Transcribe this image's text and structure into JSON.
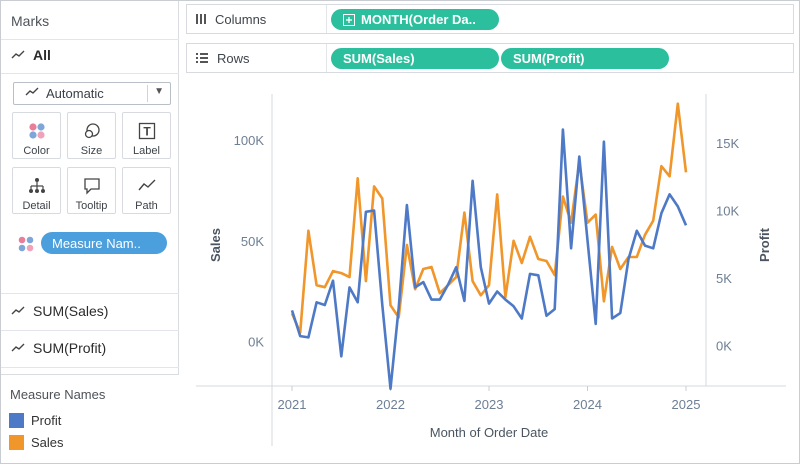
{
  "marks_panel": {
    "title": "Marks",
    "all_label": "All",
    "mark_type": "Automatic",
    "cards": [
      {
        "label": "Color",
        "icon": "color-dots-icon"
      },
      {
        "label": "Size",
        "icon": "size-circles-icon"
      },
      {
        "label": "Label",
        "icon": "label-t-icon"
      },
      {
        "label": "Detail",
        "icon": "detail-tree-icon"
      },
      {
        "label": "Tooltip",
        "icon": "tooltip-bubble-icon"
      },
      {
        "label": "Path",
        "icon": "path-line-icon"
      }
    ],
    "color_pill": "Measure Nam..",
    "measure_rows": [
      "SUM(Sales)",
      "SUM(Profit)"
    ]
  },
  "legend": {
    "title": "Measure Names",
    "items": [
      {
        "label": "Profit",
        "color": "#4e79c6"
      },
      {
        "label": "Sales",
        "color": "#f0962a"
      }
    ]
  },
  "shelves": {
    "columns_label": "Columns",
    "columns_pill": "MONTH(Order Da..",
    "rows_label": "Rows",
    "rows_pills": [
      "SUM(Sales)",
      "SUM(Profit)"
    ]
  },
  "chart_data": {
    "type": "line",
    "xlabel": "Month of Order Date",
    "y_left_label": "Sales",
    "y_right_label": "Profit",
    "x_ticks": [
      "2021",
      "2022",
      "2023",
      "2024",
      "2025"
    ],
    "y_left_ticks": [
      "0K",
      "50K",
      "100K"
    ],
    "y_right_ticks": [
      "0K",
      "5K",
      "10K",
      "15K"
    ],
    "y_left_range": [
      -22000,
      100000
    ],
    "y_right_range": [
      -3000,
      15000
    ],
    "x_range": [
      2021.0,
      2025.0
    ],
    "colors": {
      "sales": "#f0962a",
      "profit": "#4e79c6"
    },
    "series": [
      {
        "name": "Sales",
        "color": "#f0962a",
        "values": [
          14000,
          4500,
          55000,
          28000,
          27000,
          35000,
          34000,
          32000,
          81000,
          30000,
          77000,
          71000,
          18000,
          12000,
          48000,
          26000,
          36000,
          37000,
          24000,
          28000,
          32000,
          64000,
          30000,
          23000,
          28000,
          73000,
          22000,
          50000,
          39000,
          52000,
          41000,
          40000,
          33000,
          72000,
          59000,
          89000,
          59000,
          63000,
          20000,
          47000,
          36000,
          42000,
          42000,
          53000,
          60000,
          87000,
          82000,
          118000,
          84000
        ]
      },
      {
        "name": "Profit",
        "color": "#4e79c6",
        "values": [
          2600,
          700,
          600,
          3200,
          3000,
          4800,
          -800,
          4300,
          3200,
          9900,
          10000,
          3000,
          -3200,
          2800,
          10400,
          4300,
          4700,
          3400,
          3400,
          4500,
          5800,
          3300,
          12200,
          5800,
          3100,
          4000,
          3400,
          2900,
          2000,
          5300,
          5200,
          2200,
          2700,
          16000,
          7200,
          14000,
          7800,
          1600,
          15100,
          2000,
          2400,
          6400,
          8500,
          7400,
          7200,
          9800,
          11200,
          10300,
          8900
        ]
      }
    ]
  }
}
